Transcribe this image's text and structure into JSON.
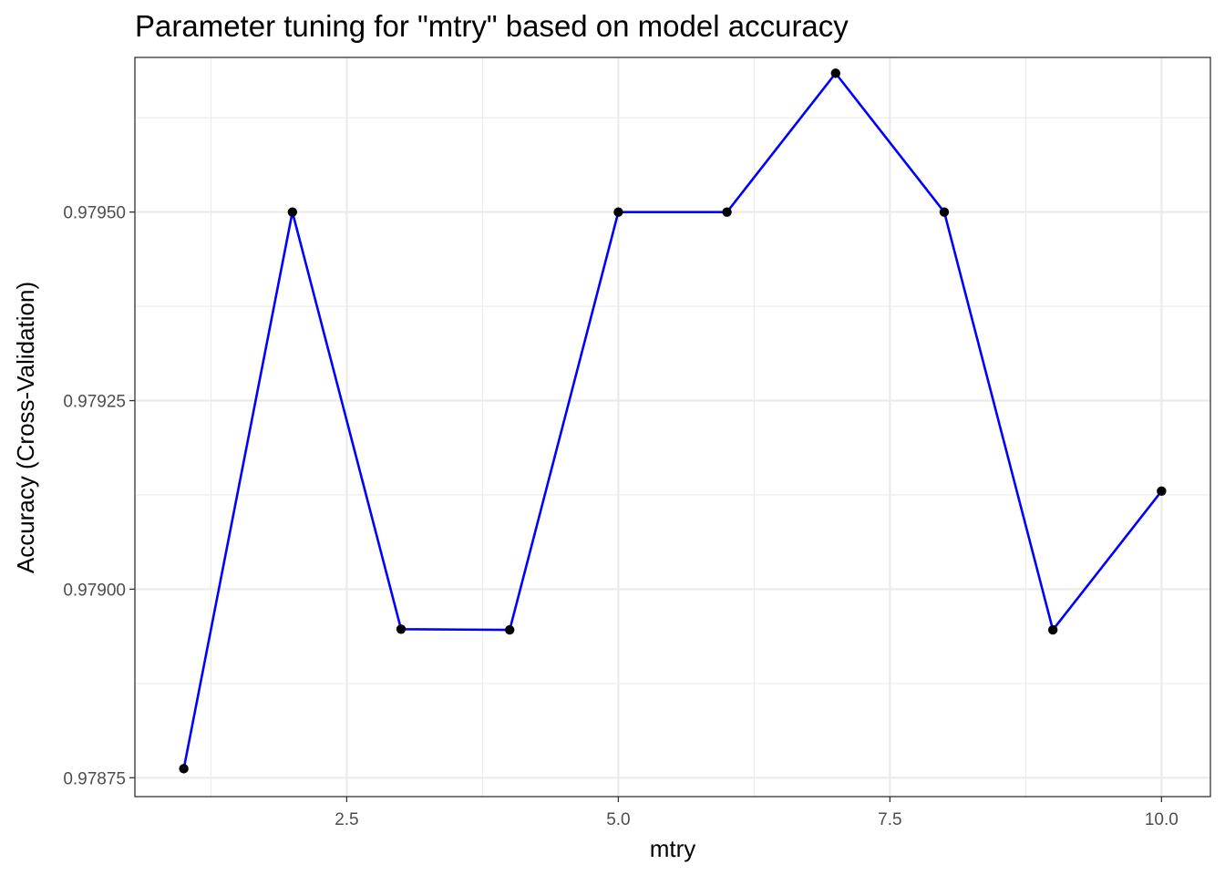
{
  "chart_data": {
    "type": "line",
    "title": "Parameter tuning for \"mtry\" based on model accuracy",
    "xlabel": "mtry",
    "ylabel": "Accuracy (Cross-Validation)",
    "xlim": [
      0.55,
      10.45
    ],
    "ylim": [
      0.978725,
      0.979705
    ],
    "x_ticks": [
      2.5,
      5.0,
      7.5,
      10.0
    ],
    "x_tick_labels": [
      "2.5",
      "5.0",
      "7.5",
      "10.0"
    ],
    "y_ticks": [
      0.97875,
      0.979,
      0.97925,
      0.9795
    ],
    "y_tick_labels": [
      "0.97875",
      "0.97900",
      "0.97925",
      "0.97950"
    ],
    "grid": true,
    "series": [
      {
        "x": [
          1,
          2,
          3,
          4,
          5,
          6,
          7,
          8,
          9,
          10
        ],
        "y": [
          0.978762,
          0.9795,
          0.978947,
          0.978946,
          0.9795,
          0.9795,
          0.979684,
          0.9795,
          0.978946,
          0.97913
        ],
        "line_color": "#0000ff",
        "point_color": "#000000"
      }
    ]
  }
}
